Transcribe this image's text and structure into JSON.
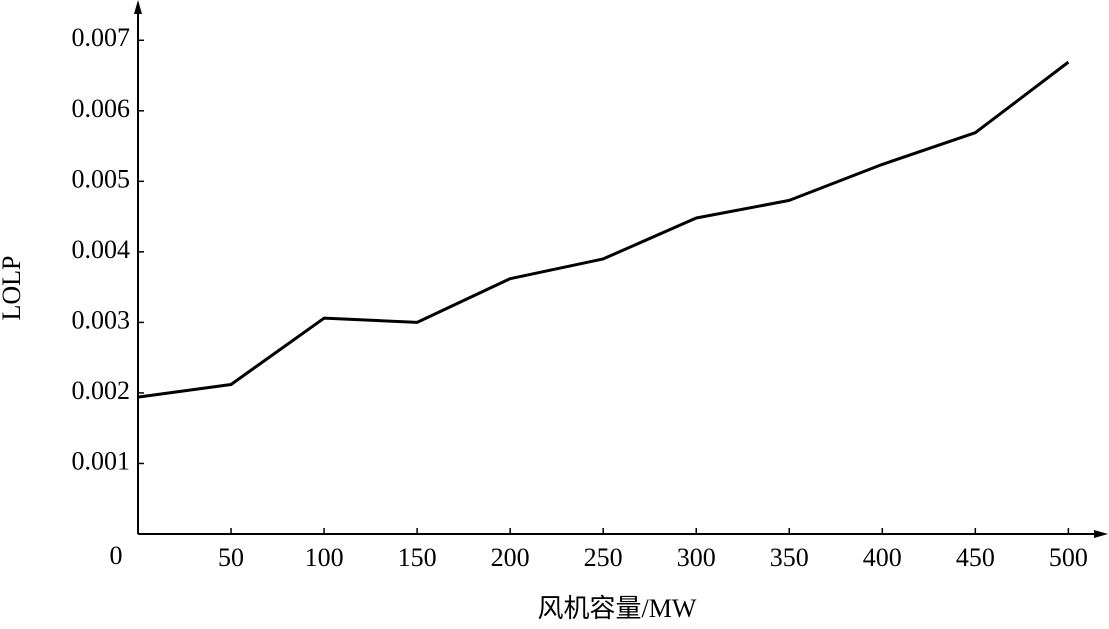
{
  "chart_data": {
    "type": "line",
    "x_label": "风机容量/MW",
    "y_label": "LOLP",
    "x": [
      0,
      50,
      100,
      150,
      200,
      250,
      300,
      350,
      400,
      450,
      500
    ],
    "series": [
      {
        "color": "#000000",
        "values": [
          0.00194,
          0.00212,
          0.00306,
          0.003,
          0.00362,
          0.0039,
          0.00448,
          0.00473,
          0.00524,
          0.00569,
          0.00669
        ]
      }
    ],
    "xlim": [
      0,
      517
    ],
    "ylim": [
      0,
      0.0075
    ],
    "xticks": [
      0,
      50,
      100,
      150,
      200,
      250,
      300,
      350,
      400,
      450,
      500
    ],
    "yticks": [
      0.001,
      0.002,
      0.003,
      0.004,
      0.005,
      0.006,
      0.007
    ]
  }
}
